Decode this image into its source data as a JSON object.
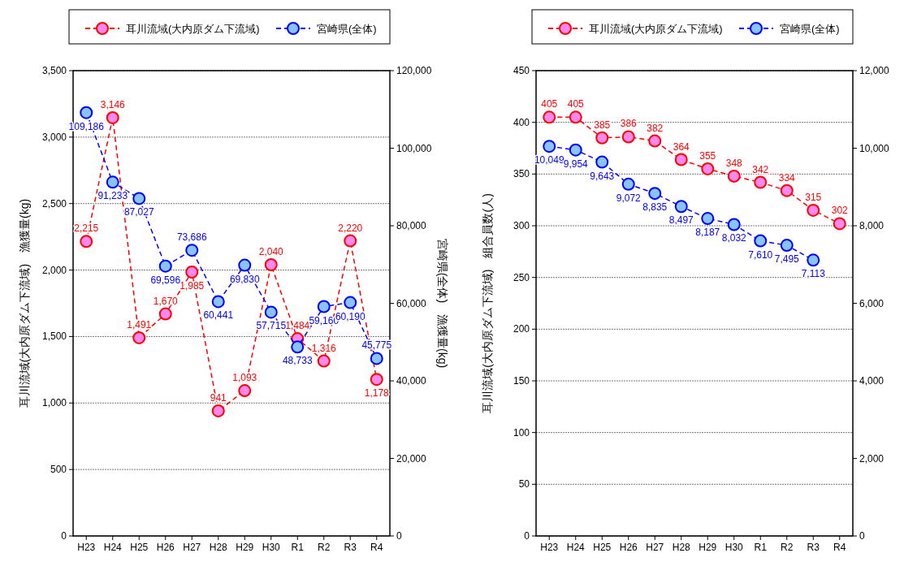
{
  "chart_data": [
    {
      "type": "line",
      "categories": [
        "H23",
        "H24",
        "H25",
        "H26",
        "H27",
        "H28",
        "H29",
        "H30",
        "R1",
        "R2",
        "R3",
        "R4"
      ],
      "ylabel": "耳川流域(大内原ダム下流域)　漁獲量(kg)",
      "y2label": "宮崎県(全体)　漁獲量(kg)",
      "ylim": [
        0,
        3500
      ],
      "yticks": [
        0,
        500,
        {
          "value": 1000,
          "label": "1,000"
        },
        {
          "value": 1500,
          "label": "1,500"
        },
        {
          "value": 2000,
          "label": "2,000"
        },
        {
          "value": 2500,
          "label": "2,500"
        },
        {
          "value": 3000,
          "label": "3,000"
        },
        {
          "value": 3500,
          "label": "3,500"
        }
      ],
      "y2lim": [
        0,
        120000
      ],
      "y2ticks": [
        0,
        {
          "value": 20000,
          "label": "20,000"
        },
        {
          "value": 40000,
          "label": "40,000"
        },
        {
          "value": 60000,
          "label": "60,000"
        },
        {
          "value": 80000,
          "label": "80,000"
        },
        {
          "value": 100000,
          "label": "100,000"
        },
        {
          "value": 120000,
          "label": "120,000"
        }
      ],
      "grid": "y",
      "legend": "top",
      "marker": "circle",
      "line_style": "dashed",
      "series": [
        {
          "name": "耳川流域(大内原ダム下流域)",
          "color": "#ff0000",
          "values": [
            2215,
            3146,
            1491,
            1670,
            1985,
            941,
            1093,
            2040,
            1484,
            1316,
            2220,
            1178
          ],
          "value_labels": [
            "2,215",
            "3,146",
            "1,491",
            "1,670",
            "1,985",
            "941",
            "1,093",
            "2,040",
            "1,484",
            "1,316",
            "2,220",
            "1,178"
          ]
        },
        {
          "name": "宮崎県(全体)",
          "color": "#0000ff",
          "axis": "y2",
          "values": [
            109186,
            91233,
            87027,
            69596,
            73686,
            60441,
            69830,
            57715,
            48733,
            59160,
            60190,
            45775
          ],
          "value_labels": [
            "109,186",
            "91,233",
            "87,027",
            "69,596",
            "73,686",
            "60,441",
            "69,830",
            "57,715",
            "48,733",
            "59,160",
            "60,190",
            "45,775"
          ]
        }
      ]
    },
    {
      "type": "line",
      "categories": [
        "H23",
        "H24",
        "H25",
        "H26",
        "H27",
        "H28",
        "H29",
        "H30",
        "R1",
        "R2",
        "R3",
        "R4"
      ],
      "ylabel": "耳川流域(大内原ダム下流域)　組合員数(人)",
      "ylim": [
        0,
        450
      ],
      "yticks": [
        0,
        50,
        100,
        150,
        200,
        250,
        300,
        350,
        400,
        450
      ],
      "y2lim": [
        0,
        12000
      ],
      "y2ticks": [
        0,
        {
          "value": 2000,
          "label": "2,000"
        },
        {
          "value": 4000,
          "label": "4,000"
        },
        {
          "value": 6000,
          "label": "6,000"
        },
        {
          "value": 8000,
          "label": "8,000"
        },
        {
          "value": 10000,
          "label": "10,000"
        },
        {
          "value": 12000,
          "label": "12,000"
        }
      ],
      "grid": "y",
      "legend": "top",
      "marker": "circle",
      "line_style": "dashed",
      "series": [
        {
          "name": "耳川流域(大内原ダム下流域)",
          "color": "#ff0000",
          "values": [
            405,
            405,
            385,
            386,
            382,
            364,
            355,
            348,
            342,
            334,
            315,
            302
          ],
          "value_labels": [
            "405",
            "405",
            "385",
            "386",
            "382",
            "364",
            "355",
            "348",
            "342",
            "334",
            "315",
            "302"
          ]
        },
        {
          "name": "宮崎県(全体)",
          "color": "#0000ff",
          "axis": "y2",
          "values": [
            10049,
            9954,
            9643,
            9072,
            8835,
            8497,
            8187,
            8032,
            7610,
            7495,
            7113,
            null
          ],
          "value_labels": [
            "10,049",
            "9,954",
            "9,643",
            "9,072",
            "8,835",
            "8,497",
            "8,187",
            "8,032",
            "7,610",
            "7,495",
            "7,113",
            null
          ]
        }
      ]
    }
  ]
}
